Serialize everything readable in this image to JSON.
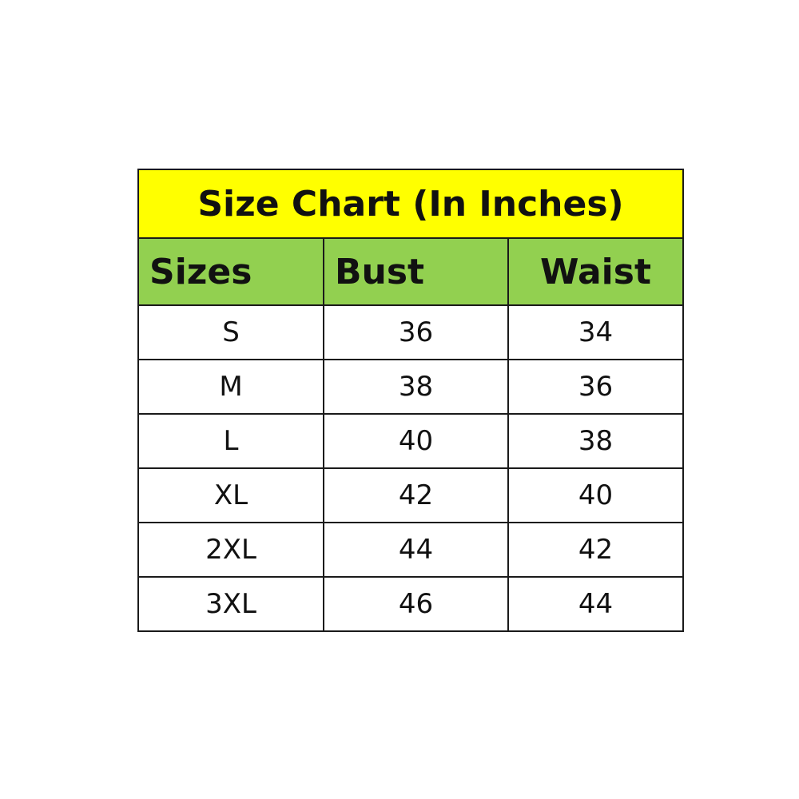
{
  "chart_data": {
    "type": "table",
    "title": "Size Chart (In Inches)",
    "columns": [
      "Sizes",
      "Bust",
      "Waist"
    ],
    "rows": [
      [
        "S",
        "36",
        "34"
      ],
      [
        "M",
        "38",
        "36"
      ],
      [
        "L",
        "40",
        "38"
      ],
      [
        "XL",
        "42",
        "40"
      ],
      [
        "2XL",
        "44",
        "42"
      ],
      [
        "3XL",
        "46",
        "44"
      ]
    ],
    "colors": {
      "title_bg": "#ffff00",
      "header_bg": "#92d050",
      "border": "#1a1a1a"
    }
  }
}
